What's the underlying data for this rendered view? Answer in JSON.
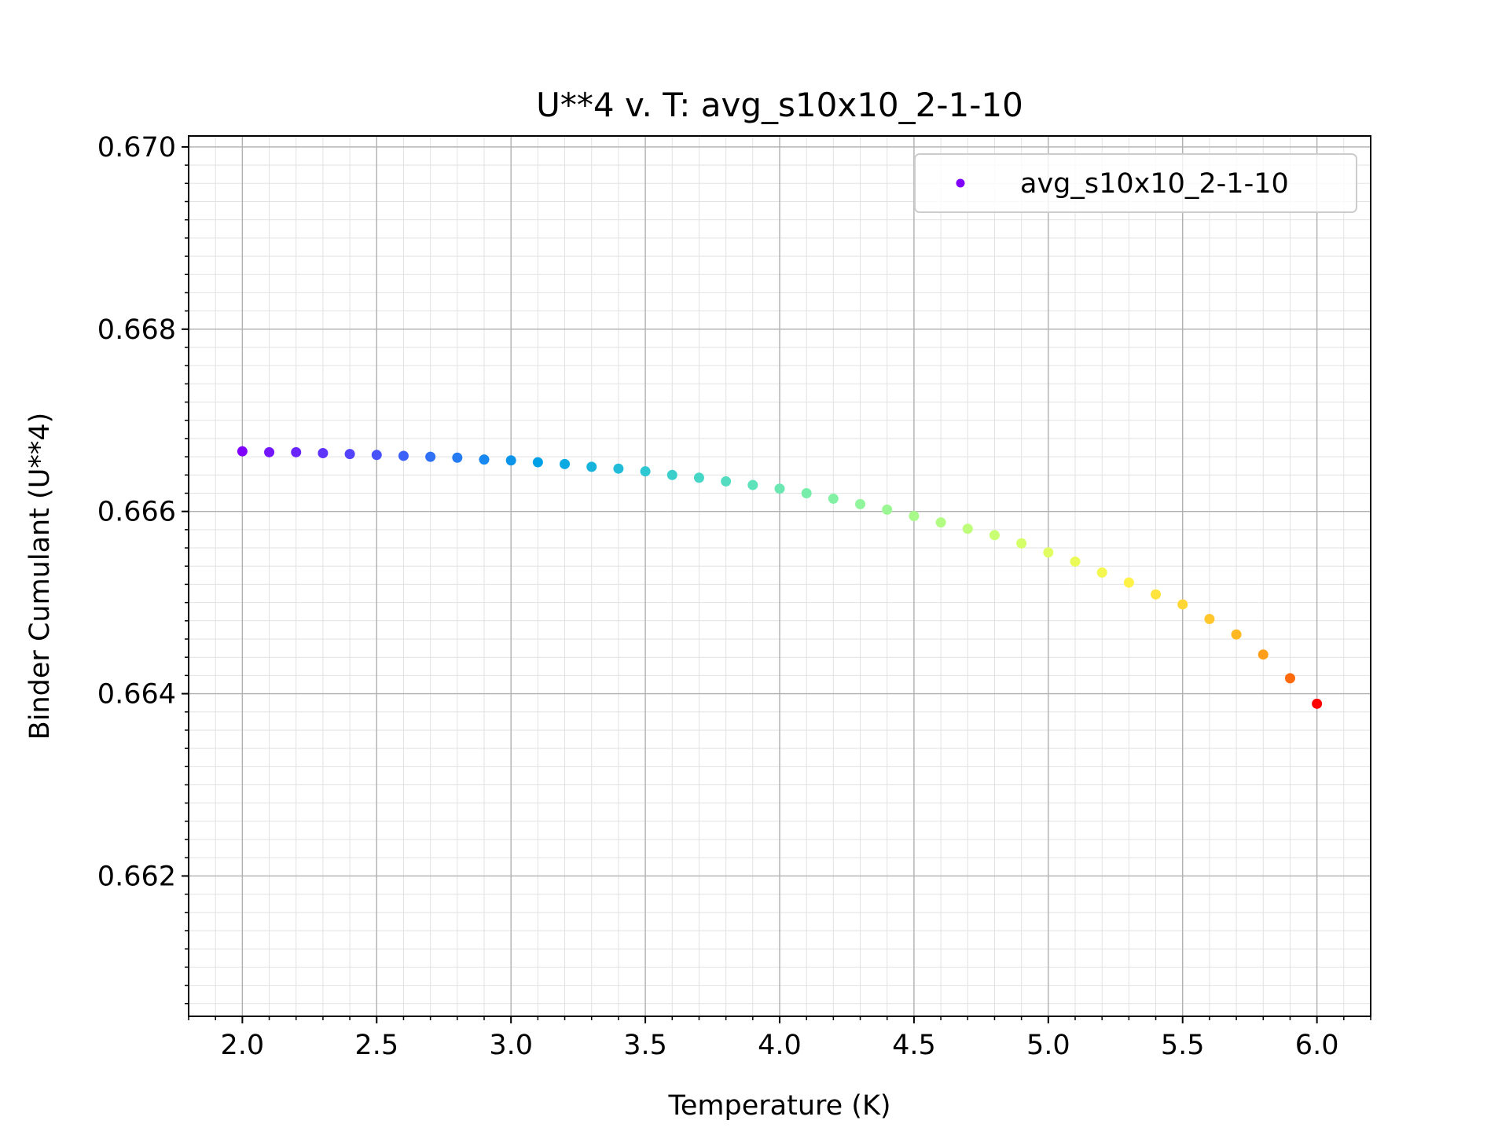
{
  "chart_data": {
    "type": "scatter",
    "title": "U**4 v. T: avg_s10x10_2-1-10",
    "xlabel": "Temperature (K)",
    "ylabel": "Binder Cumulant (U**4)",
    "xlim": [
      1.8,
      6.2
    ],
    "ylim": [
      0.66046,
      0.67012
    ],
    "x_ticks": [
      2.0,
      2.5,
      3.0,
      3.5,
      4.0,
      4.5,
      5.0,
      5.5,
      6.0
    ],
    "x_tick_labels": [
      "2.0",
      "2.5",
      "3.0",
      "3.5",
      "4.0",
      "4.5",
      "5.0",
      "5.5",
      "6.0"
    ],
    "y_ticks": [
      0.662,
      0.664,
      0.666,
      0.668,
      0.67
    ],
    "y_tick_labels": [
      "0.662",
      "0.664",
      "0.666",
      "0.668",
      "0.670"
    ],
    "grid": true,
    "minor_grid": true,
    "legend_position": "top-right",
    "colormap": "rainbow",
    "series": [
      {
        "name": "avg_s10x10_2-1-10",
        "color": "#8000ff",
        "x": [
          2.0,
          2.1,
          2.2,
          2.3,
          2.4,
          2.5,
          2.6,
          2.7,
          2.8,
          2.9,
          3.0,
          3.1,
          3.2,
          3.3,
          3.4,
          3.5,
          3.6,
          3.7,
          3.8,
          3.9,
          4.0,
          4.1,
          4.2,
          4.3,
          4.4,
          4.5,
          4.6,
          4.7,
          4.8,
          4.9,
          5.0,
          5.1,
          5.2,
          5.3,
          5.4,
          5.5,
          5.6,
          5.7,
          5.8,
          5.9,
          6.0
        ],
        "y": [
          0.66666,
          0.66665,
          0.66665,
          0.66664,
          0.66663,
          0.66662,
          0.66661,
          0.6666,
          0.66659,
          0.66657,
          0.66656,
          0.66654,
          0.66652,
          0.66649,
          0.66647,
          0.66644,
          0.6664,
          0.66637,
          0.66633,
          0.66629,
          0.66625,
          0.6662,
          0.66614,
          0.66608,
          0.66602,
          0.66595,
          0.66588,
          0.66581,
          0.66574,
          0.66565,
          0.66555,
          0.66545,
          0.66533,
          0.66522,
          0.66509,
          0.66498,
          0.66482,
          0.66465,
          0.66443,
          0.66417,
          0.66389
        ],
        "colors": [
          "#8000ff",
          "#7316ff",
          "#6a24fe",
          "#5f35fd",
          "#5443fc",
          "#4752fa",
          "#3c61f8",
          "#2f70f5",
          "#247bf2",
          "#1788ef",
          "#0c94eb",
          "#02a0e6",
          "#09aae2",
          "#16b4dd",
          "#21bdd8",
          "#2ec7d2",
          "#3bcfcc",
          "#46d6c6",
          "#53dcbf",
          "#5ee2b9",
          "#6be8b1",
          "#78edaa",
          "#83f1a3",
          "#90f59b",
          "#9bf794",
          "#a8fa8b",
          "#b3fc83",
          "#befe7b",
          "#c9ff72",
          "#d4ff69",
          "#e0fe61",
          "#eafb58",
          "#f4f74f",
          "#fff246",
          "#ffe43d",
          "#ffd634",
          "#ffc72b",
          "#ffb822",
          "#ff9f19",
          "#ff6a0d",
          "#ff0000"
        ]
      }
    ]
  }
}
